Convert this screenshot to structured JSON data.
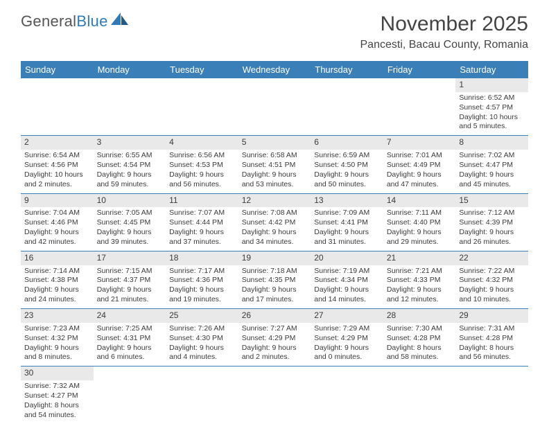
{
  "logo": {
    "general": "General",
    "blue": "Blue"
  },
  "title": "November 2025",
  "location": "Pancesti, Bacau County, Romania",
  "colors": {
    "header_bg": "#3a7fb8",
    "header_text": "#ffffff",
    "daynum_bg": "#e9e9e9",
    "border": "#3a7fb8",
    "text": "#3a3a3a",
    "logo_blue": "#2f7ab8"
  },
  "day_headers": [
    "Sunday",
    "Monday",
    "Tuesday",
    "Wednesday",
    "Thursday",
    "Friday",
    "Saturday"
  ],
  "weeks": [
    [
      {
        "n": "",
        "sr": "",
        "ss": "",
        "dl": ""
      },
      {
        "n": "",
        "sr": "",
        "ss": "",
        "dl": ""
      },
      {
        "n": "",
        "sr": "",
        "ss": "",
        "dl": ""
      },
      {
        "n": "",
        "sr": "",
        "ss": "",
        "dl": ""
      },
      {
        "n": "",
        "sr": "",
        "ss": "",
        "dl": ""
      },
      {
        "n": "",
        "sr": "",
        "ss": "",
        "dl": ""
      },
      {
        "n": "1",
        "sr": "Sunrise: 6:52 AM",
        "ss": "Sunset: 4:57 PM",
        "dl": "Daylight: 10 hours and 5 minutes."
      }
    ],
    [
      {
        "n": "2",
        "sr": "Sunrise: 6:54 AM",
        "ss": "Sunset: 4:56 PM",
        "dl": "Daylight: 10 hours and 2 minutes."
      },
      {
        "n": "3",
        "sr": "Sunrise: 6:55 AM",
        "ss": "Sunset: 4:54 PM",
        "dl": "Daylight: 9 hours and 59 minutes."
      },
      {
        "n": "4",
        "sr": "Sunrise: 6:56 AM",
        "ss": "Sunset: 4:53 PM",
        "dl": "Daylight: 9 hours and 56 minutes."
      },
      {
        "n": "5",
        "sr": "Sunrise: 6:58 AM",
        "ss": "Sunset: 4:51 PM",
        "dl": "Daylight: 9 hours and 53 minutes."
      },
      {
        "n": "6",
        "sr": "Sunrise: 6:59 AM",
        "ss": "Sunset: 4:50 PM",
        "dl": "Daylight: 9 hours and 50 minutes."
      },
      {
        "n": "7",
        "sr": "Sunrise: 7:01 AM",
        "ss": "Sunset: 4:49 PM",
        "dl": "Daylight: 9 hours and 47 minutes."
      },
      {
        "n": "8",
        "sr": "Sunrise: 7:02 AM",
        "ss": "Sunset: 4:47 PM",
        "dl": "Daylight: 9 hours and 45 minutes."
      }
    ],
    [
      {
        "n": "9",
        "sr": "Sunrise: 7:04 AM",
        "ss": "Sunset: 4:46 PM",
        "dl": "Daylight: 9 hours and 42 minutes."
      },
      {
        "n": "10",
        "sr": "Sunrise: 7:05 AM",
        "ss": "Sunset: 4:45 PM",
        "dl": "Daylight: 9 hours and 39 minutes."
      },
      {
        "n": "11",
        "sr": "Sunrise: 7:07 AM",
        "ss": "Sunset: 4:44 PM",
        "dl": "Daylight: 9 hours and 37 minutes."
      },
      {
        "n": "12",
        "sr": "Sunrise: 7:08 AM",
        "ss": "Sunset: 4:42 PM",
        "dl": "Daylight: 9 hours and 34 minutes."
      },
      {
        "n": "13",
        "sr": "Sunrise: 7:09 AM",
        "ss": "Sunset: 4:41 PM",
        "dl": "Daylight: 9 hours and 31 minutes."
      },
      {
        "n": "14",
        "sr": "Sunrise: 7:11 AM",
        "ss": "Sunset: 4:40 PM",
        "dl": "Daylight: 9 hours and 29 minutes."
      },
      {
        "n": "15",
        "sr": "Sunrise: 7:12 AM",
        "ss": "Sunset: 4:39 PM",
        "dl": "Daylight: 9 hours and 26 minutes."
      }
    ],
    [
      {
        "n": "16",
        "sr": "Sunrise: 7:14 AM",
        "ss": "Sunset: 4:38 PM",
        "dl": "Daylight: 9 hours and 24 minutes."
      },
      {
        "n": "17",
        "sr": "Sunrise: 7:15 AM",
        "ss": "Sunset: 4:37 PM",
        "dl": "Daylight: 9 hours and 21 minutes."
      },
      {
        "n": "18",
        "sr": "Sunrise: 7:17 AM",
        "ss": "Sunset: 4:36 PM",
        "dl": "Daylight: 9 hours and 19 minutes."
      },
      {
        "n": "19",
        "sr": "Sunrise: 7:18 AM",
        "ss": "Sunset: 4:35 PM",
        "dl": "Daylight: 9 hours and 17 minutes."
      },
      {
        "n": "20",
        "sr": "Sunrise: 7:19 AM",
        "ss": "Sunset: 4:34 PM",
        "dl": "Daylight: 9 hours and 14 minutes."
      },
      {
        "n": "21",
        "sr": "Sunrise: 7:21 AM",
        "ss": "Sunset: 4:33 PM",
        "dl": "Daylight: 9 hours and 12 minutes."
      },
      {
        "n": "22",
        "sr": "Sunrise: 7:22 AM",
        "ss": "Sunset: 4:32 PM",
        "dl": "Daylight: 9 hours and 10 minutes."
      }
    ],
    [
      {
        "n": "23",
        "sr": "Sunrise: 7:23 AM",
        "ss": "Sunset: 4:32 PM",
        "dl": "Daylight: 9 hours and 8 minutes."
      },
      {
        "n": "24",
        "sr": "Sunrise: 7:25 AM",
        "ss": "Sunset: 4:31 PM",
        "dl": "Daylight: 9 hours and 6 minutes."
      },
      {
        "n": "25",
        "sr": "Sunrise: 7:26 AM",
        "ss": "Sunset: 4:30 PM",
        "dl": "Daylight: 9 hours and 4 minutes."
      },
      {
        "n": "26",
        "sr": "Sunrise: 7:27 AM",
        "ss": "Sunset: 4:29 PM",
        "dl": "Daylight: 9 hours and 2 minutes."
      },
      {
        "n": "27",
        "sr": "Sunrise: 7:29 AM",
        "ss": "Sunset: 4:29 PM",
        "dl": "Daylight: 9 hours and 0 minutes."
      },
      {
        "n": "28",
        "sr": "Sunrise: 7:30 AM",
        "ss": "Sunset: 4:28 PM",
        "dl": "Daylight: 8 hours and 58 minutes."
      },
      {
        "n": "29",
        "sr": "Sunrise: 7:31 AM",
        "ss": "Sunset: 4:28 PM",
        "dl": "Daylight: 8 hours and 56 minutes."
      }
    ],
    [
      {
        "n": "30",
        "sr": "Sunrise: 7:32 AM",
        "ss": "Sunset: 4:27 PM",
        "dl": "Daylight: 8 hours and 54 minutes."
      },
      {
        "n": "",
        "sr": "",
        "ss": "",
        "dl": ""
      },
      {
        "n": "",
        "sr": "",
        "ss": "",
        "dl": ""
      },
      {
        "n": "",
        "sr": "",
        "ss": "",
        "dl": ""
      },
      {
        "n": "",
        "sr": "",
        "ss": "",
        "dl": ""
      },
      {
        "n": "",
        "sr": "",
        "ss": "",
        "dl": ""
      },
      {
        "n": "",
        "sr": "",
        "ss": "",
        "dl": ""
      }
    ]
  ]
}
